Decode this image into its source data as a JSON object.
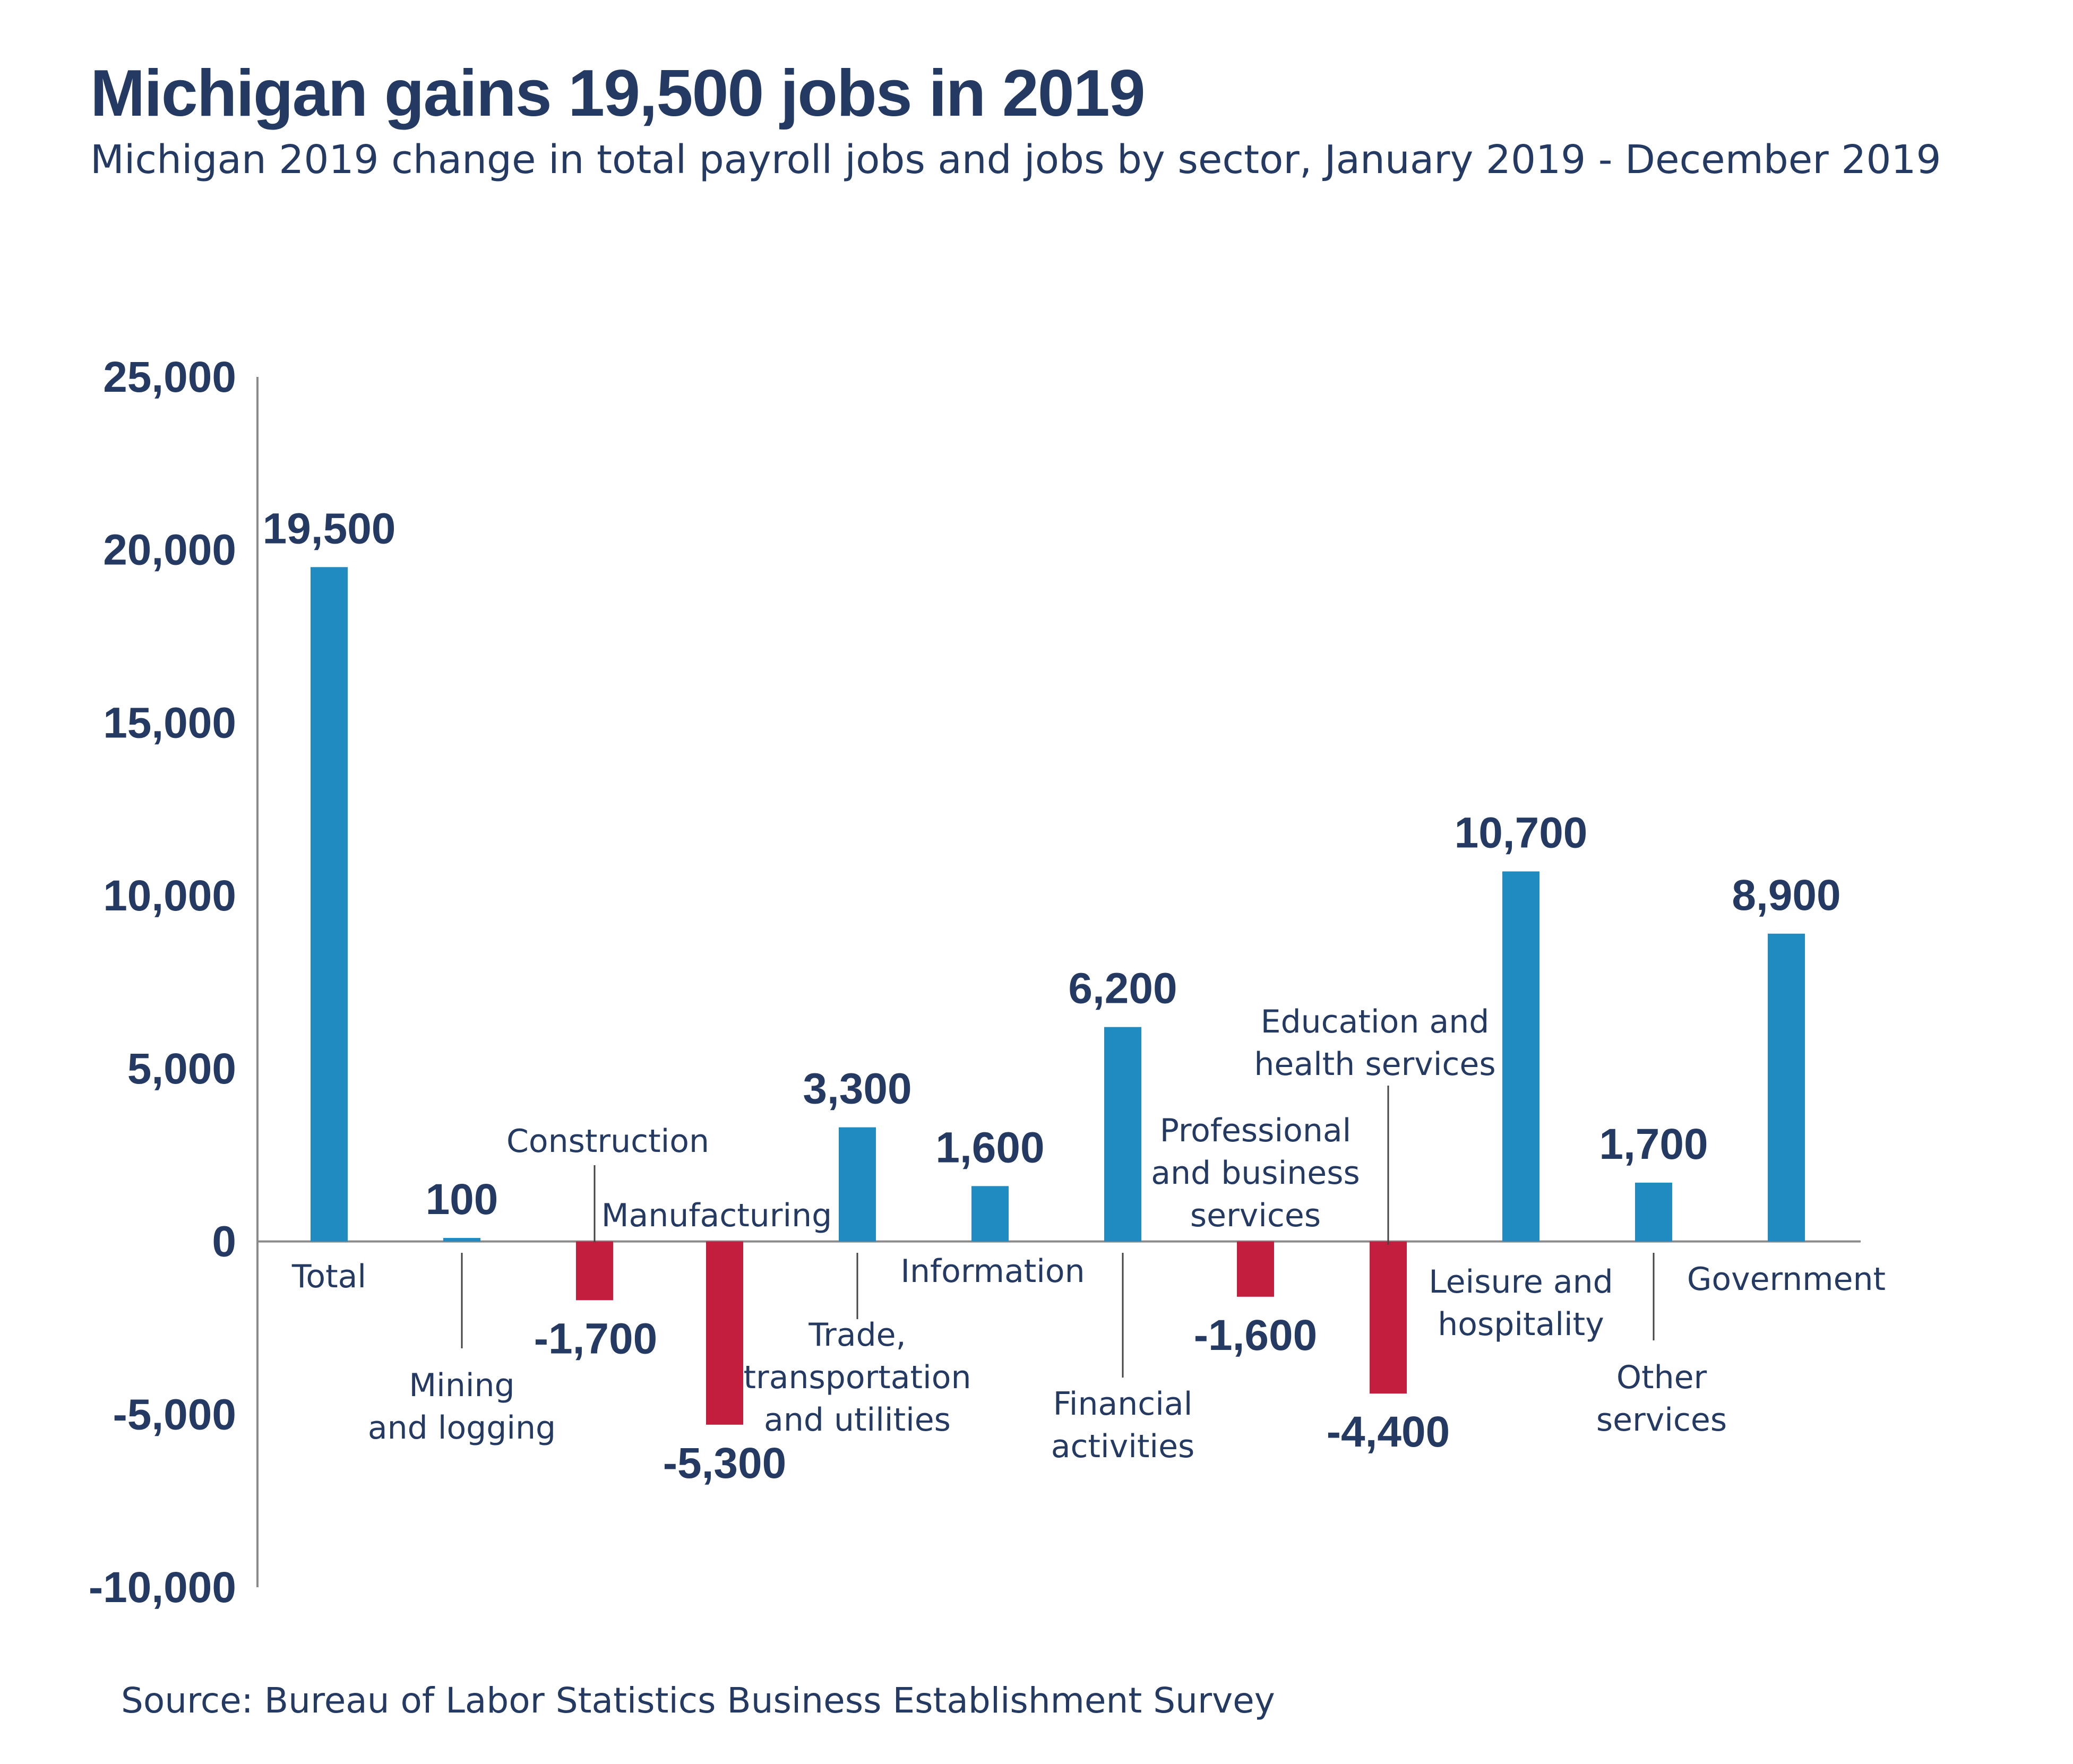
{
  "title": "Michigan gains 19,500 jobs in 2019",
  "subtitle": "Michigan 2019 change in total payroll jobs and jobs by sector, January 2019 - December 2019",
  "source": "Source: Bureau of Labor Statistics Business Establishment Survey",
  "chart_data": {
    "type": "bar",
    "categories": [
      "Total",
      "Mining and logging",
      "Construction",
      "Manufacturing",
      "Trade, transportation and utilities",
      "Information",
      "Financial activities",
      "Professional and business services",
      "Education and health services",
      "Leisure and hospitality",
      "Other services",
      "Government"
    ],
    "values": [
      19500,
      100,
      -1700,
      -5300,
      3300,
      1600,
      6200,
      -1600,
      -4400,
      10700,
      1700,
      8900
    ],
    "value_labels": [
      "19,500",
      "100",
      "-1,700",
      "-5,300",
      "3,300",
      "1,600",
      "6,200",
      "-1,600",
      "-4,400",
      "10,700",
      "1,700",
      "8,900"
    ],
    "ylim": [
      -10000,
      25000
    ],
    "yticks": [
      25000,
      20000,
      15000,
      10000,
      5000,
      0,
      -5000,
      -10000
    ],
    "ytick_labels": [
      "25,000",
      "20,000",
      "15,000",
      "10,000",
      "5,000",
      "0",
      "-5,000",
      "-10,000"
    ],
    "grid": false,
    "colors": {
      "positive": "#1f8bc0",
      "negative": "#c41e3f",
      "text": "#243a63",
      "axis": "#8a8a8a"
    }
  }
}
